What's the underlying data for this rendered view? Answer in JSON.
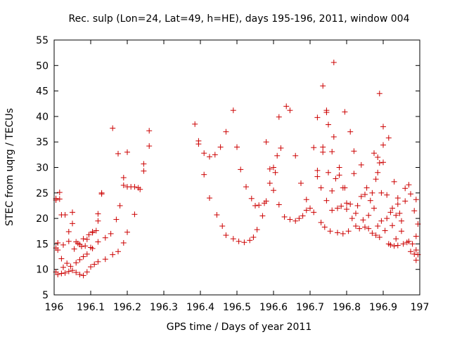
{
  "chart_data": {
    "type": "scatter",
    "title": "Rec. sulp (Lon=24, Lat=49, h=HE), days 195-196, 2011, window 004",
    "xlabel": "GPS time / Days of year 2011",
    "ylabel": "STEC from uqrg / TECUs",
    "xlim": [
      196,
      197
    ],
    "ylim": [
      5,
      55
    ],
    "x_ticks": [
      196,
      196.1,
      196.2,
      196.3,
      196.4,
      196.5,
      196.6,
      196.7,
      196.8,
      196.9,
      197
    ],
    "x_tick_labels": [
      "196",
      "196.1",
      "196.2",
      "196.3",
      "196.4",
      "196.5",
      "196.6",
      "196.7",
      "196.8",
      "196.9",
      "197"
    ],
    "y_ticks": [
      5,
      10,
      15,
      20,
      25,
      30,
      35,
      40,
      45,
      50,
      55
    ],
    "y_tick_labels": [
      "5",
      "10",
      "15",
      "20",
      "25",
      "30",
      "35",
      "40",
      "45",
      "50",
      "55"
    ],
    "grid": false,
    "marker": "plus",
    "color": "#cc0000",
    "series": [
      {
        "points": [
          [
            196.005,
            9.5
          ],
          [
            196.01,
            9.0
          ],
          [
            196.02,
            9.2
          ],
          [
            196.03,
            9.3
          ],
          [
            196.04,
            9.6
          ],
          [
            196.05,
            9.8
          ],
          [
            196.06,
            9.4
          ],
          [
            196.07,
            9.0
          ],
          [
            196.08,
            8.8
          ],
          [
            196.09,
            9.5
          ],
          [
            196.1,
            10.5
          ],
          [
            196.11,
            11.0
          ],
          [
            196.12,
            11.5
          ],
          [
            196.14,
            12.0
          ],
          [
            196.16,
            12.9
          ],
          [
            196.175,
            13.5
          ],
          [
            196.19,
            15.2
          ],
          [
            196.2,
            17.3
          ],
          [
            196.005,
            14.2
          ],
          [
            196.01,
            13.8
          ],
          [
            196.02,
            12.1
          ],
          [
            196.025,
            10.4
          ],
          [
            196.035,
            11.2
          ],
          [
            196.045,
            10.6
          ],
          [
            196.06,
            11.3
          ],
          [
            196.07,
            11.9
          ],
          [
            196.08,
            12.5
          ],
          [
            196.09,
            13.0
          ],
          [
            196.105,
            14.1
          ],
          [
            196.12,
            15.4
          ],
          [
            196.14,
            16.2
          ],
          [
            196.155,
            17.0
          ],
          [
            196.17,
            19.8
          ],
          [
            196.18,
            22.5
          ],
          [
            196.19,
            26.5
          ],
          [
            196.2,
            26.2
          ],
          [
            196.21,
            26.2
          ],
          [
            196.22,
            26.2
          ],
          [
            196.235,
            25.7
          ],
          [
            196.245,
            29.3
          ],
          [
            196.26,
            34.2
          ],
          [
            196.26,
            37.2
          ],
          [
            196.005,
            23.6
          ],
          [
            196.005,
            23.9
          ],
          [
            196.015,
            23.8
          ],
          [
            196.015,
            25.1
          ],
          [
            196.02,
            20.7
          ],
          [
            196.03,
            20.7
          ],
          [
            196.04,
            17.4
          ],
          [
            196.05,
            19.0
          ],
          [
            196.05,
            21.2
          ],
          [
            196.06,
            15.4
          ],
          [
            196.07,
            14.9
          ],
          [
            196.075,
            14.5
          ],
          [
            196.085,
            14.6
          ],
          [
            196.09,
            15.9
          ],
          [
            196.1,
            14.3
          ],
          [
            196.105,
            17.2
          ],
          [
            196.12,
            20.9
          ],
          [
            196.13,
            24.8
          ],
          [
            196.13,
            25.0
          ],
          [
            196.12,
            19.5
          ],
          [
            196.16,
            37.7
          ],
          [
            196.175,
            32.7
          ],
          [
            196.19,
            28.0
          ],
          [
            196.2,
            33.0
          ],
          [
            196.22,
            20.8
          ],
          [
            196.23,
            26.0
          ],
          [
            196.245,
            30.7
          ],
          [
            196.01,
            15.2
          ],
          [
            196.025,
            14.8
          ],
          [
            196.04,
            15.5
          ],
          [
            196.055,
            14.0
          ],
          [
            196.065,
            15.1
          ],
          [
            196.08,
            16.0
          ],
          [
            196.095,
            16.8
          ],
          [
            196.105,
            17.4
          ],
          [
            196.115,
            17.6
          ],
          [
            196.385,
            38.5
          ],
          [
            196.395,
            35.2
          ],
          [
            196.395,
            34.6
          ],
          [
            196.41,
            32.8
          ],
          [
            196.41,
            28.6
          ],
          [
            196.425,
            32.1
          ],
          [
            196.425,
            24.0
          ],
          [
            196.44,
            32.5
          ],
          [
            196.445,
            20.7
          ],
          [
            196.455,
            34.0
          ],
          [
            196.46,
            18.5
          ],
          [
            196.47,
            37.0
          ],
          [
            196.47,
            16.7
          ],
          [
            196.49,
            41.2
          ],
          [
            196.49,
            16.0
          ],
          [
            196.5,
            34.0
          ],
          [
            196.505,
            15.5
          ],
          [
            196.51,
            29.6
          ],
          [
            196.52,
            15.3
          ],
          [
            196.525,
            26.2
          ],
          [
            196.535,
            15.7
          ],
          [
            196.54,
            23.9
          ],
          [
            196.545,
            16.3
          ],
          [
            196.55,
            22.5
          ],
          [
            196.555,
            17.8
          ],
          [
            196.56,
            22.6
          ],
          [
            196.57,
            20.5
          ],
          [
            196.575,
            23.0
          ],
          [
            196.58,
            23.4
          ],
          [
            196.58,
            35.0
          ],
          [
            196.59,
            26.9
          ],
          [
            196.59,
            29.7
          ],
          [
            196.6,
            30.0
          ],
          [
            196.6,
            25.5
          ],
          [
            196.605,
            29.0
          ],
          [
            196.61,
            32.3
          ],
          [
            196.615,
            39.9
          ],
          [
            196.62,
            33.8
          ],
          [
            196.615,
            22.7
          ],
          [
            196.63,
            20.3
          ],
          [
            196.635,
            42.0
          ],
          [
            196.645,
            19.8
          ],
          [
            196.645,
            41.2
          ],
          [
            196.66,
            19.5
          ],
          [
            196.66,
            32.3
          ],
          [
            196.67,
            20.0
          ],
          [
            196.675,
            26.9
          ],
          [
            196.68,
            20.5
          ],
          [
            196.69,
            21.6
          ],
          [
            196.69,
            23.7
          ],
          [
            196.7,
            22.0
          ],
          [
            196.71,
            21.2
          ],
          [
            196.71,
            33.9
          ],
          [
            196.72,
            39.8
          ],
          [
            196.72,
            28.2
          ],
          [
            196.72,
            29.4
          ],
          [
            196.73,
            26.0
          ],
          [
            196.73,
            19.2
          ],
          [
            196.735,
            33.0
          ],
          [
            196.735,
            34.0
          ],
          [
            196.735,
            46.0
          ],
          [
            196.74,
            18.3
          ],
          [
            196.745,
            23.5
          ],
          [
            196.745,
            40.8
          ],
          [
            196.745,
            41.2
          ],
          [
            196.75,
            38.4
          ],
          [
            196.75,
            29.0
          ],
          [
            196.755,
            17.5
          ],
          [
            196.76,
            25.4
          ],
          [
            196.76,
            21.6
          ],
          [
            196.76,
            33.1
          ],
          [
            196.765,
            50.6
          ],
          [
            196.765,
            36.0
          ],
          [
            196.77,
            27.8
          ],
          [
            196.775,
            17.2
          ],
          [
            196.775,
            22.0
          ],
          [
            196.78,
            30.0
          ],
          [
            196.78,
            28.5
          ],
          [
            196.785,
            22.4
          ],
          [
            196.79,
            17.0
          ],
          [
            196.79,
            26.0
          ],
          [
            196.795,
            40.9
          ],
          [
            196.795,
            26.0
          ],
          [
            196.8,
            23.0
          ],
          [
            196.8,
            21.8
          ],
          [
            196.805,
            17.5
          ],
          [
            196.81,
            37.0
          ],
          [
            196.81,
            22.8
          ],
          [
            196.815,
            20.0
          ],
          [
            196.82,
            33.2
          ],
          [
            196.82,
            28.8
          ],
          [
            196.825,
            21.0
          ],
          [
            196.825,
            18.5
          ],
          [
            196.83,
            22.5
          ],
          [
            196.835,
            18.0
          ],
          [
            196.84,
            30.5
          ],
          [
            196.84,
            24.3
          ],
          [
            196.845,
            19.7
          ],
          [
            196.85,
            24.7
          ],
          [
            196.85,
            18.3
          ],
          [
            196.855,
            26.0
          ],
          [
            196.86,
            18.0
          ],
          [
            196.86,
            20.6
          ],
          [
            196.865,
            23.5
          ],
          [
            196.87,
            17.1
          ],
          [
            196.87,
            25.0
          ],
          [
            196.875,
            22.0
          ],
          [
            196.875,
            32.8
          ],
          [
            196.88,
            27.7
          ],
          [
            196.88,
            16.7
          ],
          [
            196.885,
            29.0
          ],
          [
            196.885,
            32.0
          ],
          [
            196.885,
            18.5
          ],
          [
            196.89,
            44.5
          ],
          [
            196.89,
            16.3
          ],
          [
            196.89,
            30.9
          ],
          [
            196.895,
            25.0
          ],
          [
            196.895,
            19.5
          ],
          [
            196.9,
            38.0
          ],
          [
            196.9,
            34.4
          ],
          [
            196.9,
            31.0
          ],
          [
            196.905,
            17.6
          ],
          [
            196.91,
            20.0
          ],
          [
            196.91,
            24.6
          ],
          [
            196.915,
            15.0
          ],
          [
            196.915,
            35.8
          ],
          [
            196.92,
            21.2
          ],
          [
            196.92,
            14.8
          ],
          [
            196.925,
            18.6
          ],
          [
            196.925,
            22.0
          ],
          [
            196.93,
            14.6
          ],
          [
            196.93,
            27.2
          ],
          [
            196.935,
            20.6
          ],
          [
            196.935,
            16.0
          ],
          [
            196.94,
            24.0
          ],
          [
            196.94,
            22.8
          ],
          [
            196.94,
            14.7
          ],
          [
            196.945,
            21.0
          ],
          [
            196.95,
            17.5
          ],
          [
            196.95,
            19.5
          ],
          [
            196.955,
            15.0
          ],
          [
            196.96,
            25.9
          ],
          [
            196.96,
            23.4
          ],
          [
            196.965,
            15.3
          ],
          [
            196.97,
            15.5
          ],
          [
            196.97,
            26.6
          ],
          [
            196.975,
            13.5
          ],
          [
            196.975,
            24.8
          ],
          [
            196.98,
            15.0
          ],
          [
            196.985,
            13.0
          ],
          [
            196.985,
            21.5
          ],
          [
            196.99,
            23.7
          ],
          [
            196.99,
            16.5
          ],
          [
            196.99,
            11.8
          ],
          [
            196.99,
            13.8
          ],
          [
            196.995,
            12.9
          ],
          [
            196.995,
            18.9
          ]
        ]
      }
    ]
  }
}
